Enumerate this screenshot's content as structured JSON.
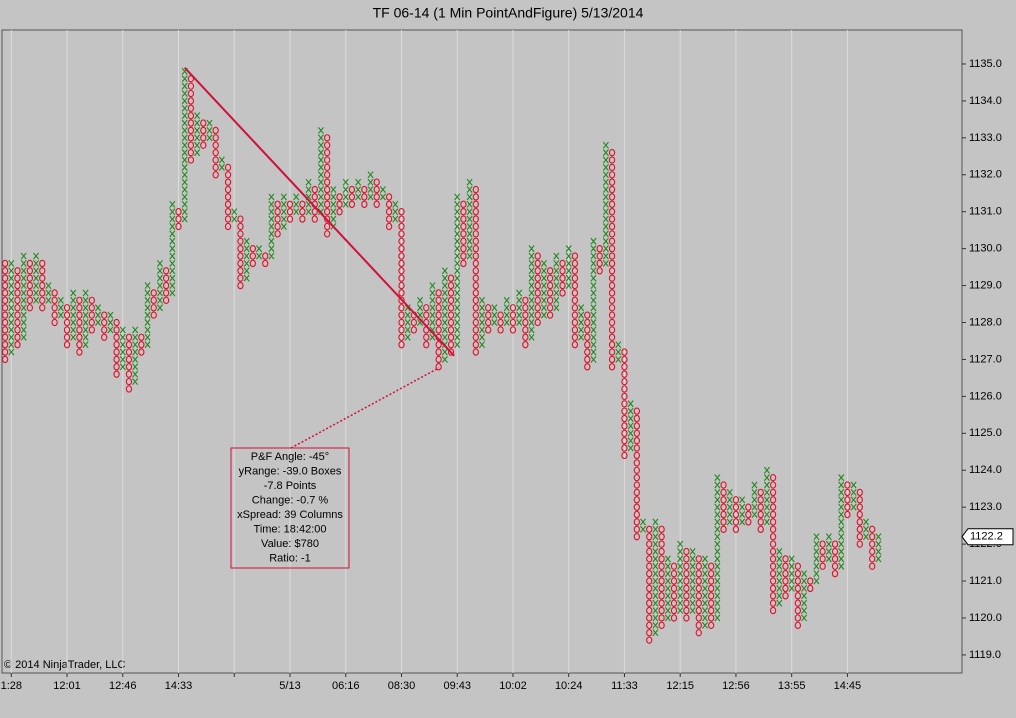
{
  "chart_data": {
    "type": "pointandfigure",
    "title": "TF 06-14 (1 Min PointAndFigure)  5/13/2014",
    "copyright": "© 2014 NinjaTrader, LLC",
    "box_size": 0.2,
    "first_column": "O",
    "x_color": "#1f8a1f",
    "o_color": "#e0102a",
    "columns": [
      [
        1127.0,
        1129.6
      ],
      [
        1127.2,
        1129.6
      ],
      [
        1127.4,
        1129.4
      ],
      [
        1127.6,
        1129.8
      ],
      [
        1128.4,
        1129.6
      ],
      [
        1128.6,
        1129.8
      ],
      [
        1128.4,
        1129.6
      ],
      [
        1128.6,
        1129.0
      ],
      [
        1128.0,
        1128.8
      ],
      [
        1128.2,
        1128.6
      ],
      [
        1127.4,
        1128.4
      ],
      [
        1127.6,
        1128.8
      ],
      [
        1127.2,
        1128.6
      ],
      [
        1127.4,
        1128.8
      ],
      [
        1127.8,
        1128.6
      ],
      [
        1128.0,
        1128.4
      ],
      [
        1127.6,
        1128.2
      ],
      [
        1127.8,
        1128.2
      ],
      [
        1126.6,
        1128.0
      ],
      [
        1126.8,
        1127.8
      ],
      [
        1126.2,
        1127.6
      ],
      [
        1126.4,
        1127.8
      ],
      [
        1127.2,
        1127.6
      ],
      [
        1127.4,
        1129.0
      ],
      [
        1128.2,
        1128.8
      ],
      [
        1128.4,
        1129.6
      ],
      [
        1128.6,
        1129.4
      ],
      [
        1128.8,
        1131.2
      ],
      [
        1130.6,
        1131.0
      ],
      [
        1130.8,
        1134.8
      ],
      [
        1132.4,
        1134.6
      ],
      [
        1132.6,
        1133.6
      ],
      [
        1132.8,
        1133.4
      ],
      [
        1133.0,
        1133.4
      ],
      [
        1132.0,
        1133.2
      ],
      [
        1132.2,
        1132.4
      ],
      [
        1130.6,
        1132.2
      ],
      [
        1130.8,
        1131.0
      ],
      [
        1129.0,
        1130.8
      ],
      [
        1129.2,
        1130.2
      ],
      [
        1129.6,
        1130.0
      ],
      [
        1129.8,
        1130.0
      ],
      [
        1129.6,
        1129.8
      ],
      [
        1129.8,
        1131.4
      ],
      [
        1130.4,
        1131.2
      ],
      [
        1130.6,
        1131.4
      ],
      [
        1130.8,
        1131.2
      ],
      [
        1131.0,
        1131.4
      ],
      [
        1130.8,
        1131.2
      ],
      [
        1131.0,
        1131.8
      ],
      [
        1130.8,
        1131.6
      ],
      [
        1131.0,
        1133.2
      ],
      [
        1130.4,
        1133.0
      ],
      [
        1130.6,
        1131.6
      ],
      [
        1131.0,
        1131.4
      ],
      [
        1131.2,
        1131.8
      ],
      [
        1131.2,
        1131.6
      ],
      [
        1131.4,
        1131.8
      ],
      [
        1131.2,
        1131.6
      ],
      [
        1131.4,
        1132.0
      ],
      [
        1131.2,
        1131.8
      ],
      [
        1131.4,
        1131.6
      ],
      [
        1130.6,
        1131.4
      ],
      [
        1130.8,
        1131.2
      ],
      [
        1127.4,
        1131.0
      ],
      [
        1127.6,
        1128.4
      ],
      [
        1127.8,
        1128.2
      ],
      [
        1128.0,
        1128.6
      ],
      [
        1127.4,
        1128.4
      ],
      [
        1127.6,
        1129.0
      ],
      [
        1126.8,
        1128.8
      ],
      [
        1127.0,
        1129.4
      ],
      [
        1127.2,
        1129.2
      ],
      [
        1127.4,
        1131.4
      ],
      [
        1129.6,
        1131.2
      ],
      [
        1129.8,
        1131.8
      ],
      [
        1127.2,
        1131.6
      ],
      [
        1127.4,
        1128.6
      ],
      [
        1127.8,
        1128.4
      ],
      [
        1128.0,
        1128.4
      ],
      [
        1127.8,
        1128.2
      ],
      [
        1128.0,
        1128.6
      ],
      [
        1127.8,
        1128.4
      ],
      [
        1128.0,
        1128.8
      ],
      [
        1127.4,
        1128.6
      ],
      [
        1127.6,
        1130.0
      ],
      [
        1128.0,
        1129.8
      ],
      [
        1128.2,
        1129.6
      ],
      [
        1128.2,
        1129.4
      ],
      [
        1128.4,
        1129.8
      ],
      [
        1128.8,
        1129.6
      ],
      [
        1129.0,
        1130.0
      ],
      [
        1127.4,
        1129.8
      ],
      [
        1127.6,
        1128.4
      ],
      [
        1126.8,
        1128.2
      ],
      [
        1127.0,
        1130.2
      ],
      [
        1129.4,
        1130.0
      ],
      [
        1129.6,
        1132.8
      ],
      [
        1126.8,
        1132.6
      ],
      [
        1127.0,
        1127.4
      ],
      [
        1124.4,
        1127.2
      ],
      [
        1124.6,
        1125.8
      ],
      [
        1122.2,
        1125.6
      ],
      [
        1122.4,
        1122.6
      ],
      [
        1119.4,
        1122.4
      ],
      [
        1119.6,
        1122.6
      ],
      [
        1119.8,
        1122.4
      ],
      [
        1120.0,
        1121.6
      ],
      [
        1120.0,
        1121.4
      ],
      [
        1120.2,
        1122.0
      ],
      [
        1120.0,
        1121.8
      ],
      [
        1120.2,
        1121.8
      ],
      [
        1119.6,
        1121.6
      ],
      [
        1119.8,
        1121.6
      ],
      [
        1119.8,
        1121.4
      ],
      [
        1120.0,
        1123.8
      ],
      [
        1122.4,
        1123.6
      ],
      [
        1122.6,
        1123.4
      ],
      [
        1122.4,
        1123.2
      ],
      [
        1122.6,
        1123.2
      ],
      [
        1122.6,
        1123.0
      ],
      [
        1122.8,
        1123.6
      ],
      [
        1122.4,
        1123.4
      ],
      [
        1122.6,
        1124.0
      ],
      [
        1120.2,
        1123.8
      ],
      [
        1120.4,
        1121.8
      ],
      [
        1120.6,
        1121.6
      ],
      [
        1120.8,
        1121.6
      ],
      [
        1119.8,
        1121.4
      ],
      [
        1120.0,
        1121.2
      ],
      [
        1120.8,
        1121.0
      ],
      [
        1121.0,
        1122.2
      ],
      [
        1121.4,
        1122.0
      ],
      [
        1121.6,
        1122.2
      ],
      [
        1121.2,
        1122.0
      ],
      [
        1121.4,
        1123.8
      ],
      [
        1122.8,
        1123.6
      ],
      [
        1123.0,
        1123.6
      ],
      [
        1122.0,
        1123.4
      ],
      [
        1122.2,
        1122.6
      ],
      [
        1121.4,
        1122.4
      ],
      [
        1121.6,
        1122.2
      ]
    ],
    "xlim": [
      -0.5,
      154.5
    ],
    "xticks": [
      {
        "value": 1,
        "label": "1:28"
      },
      {
        "value": 10,
        "label": "12:01"
      },
      {
        "value": 19,
        "label": "12:46"
      },
      {
        "value": 28,
        "label": "14:33"
      },
      {
        "value": 37,
        "label": null
      },
      {
        "value": 46,
        "label": "5/13"
      },
      {
        "value": 55,
        "label": "06:16"
      },
      {
        "value": 64,
        "label": "08:30"
      },
      {
        "value": 73,
        "label": "09:43"
      },
      {
        "value": 82,
        "label": "10:02"
      },
      {
        "value": 91,
        "label": "10:24"
      },
      {
        "value": 100,
        "label": "11:33"
      },
      {
        "value": 109,
        "label": "12:15"
      },
      {
        "value": 118,
        "label": "12:56"
      },
      {
        "value": 127,
        "label": "13:55"
      },
      {
        "value": 136,
        "label": "14:45"
      }
    ],
    "ylim": [
      1118.51,
      1135.92
    ],
    "yticks": [
      {
        "value": 1119,
        "label": "1119.0"
      },
      {
        "value": 1120,
        "label": "1120.0"
      },
      {
        "value": 1121,
        "label": "1121.0"
      },
      {
        "value": 1122,
        "label": "1122.0"
      },
      {
        "value": 1123,
        "label": "1123.0"
      },
      {
        "value": 1124,
        "label": "1124.0"
      },
      {
        "value": 1125,
        "label": "1125.0"
      },
      {
        "value": 1126,
        "label": "1126.0"
      },
      {
        "value": 1127,
        "label": "1127.0"
      },
      {
        "value": 1128,
        "label": "1128.0"
      },
      {
        "value": 1129,
        "label": "1129.0"
      },
      {
        "value": 1130,
        "label": "1130.0"
      },
      {
        "value": 1131,
        "label": "1131.0"
      },
      {
        "value": 1132,
        "label": "1132.0"
      },
      {
        "value": 1133,
        "label": "1133.0"
      },
      {
        "value": 1134,
        "label": "1134.0"
      },
      {
        "value": 1135,
        "label": "1135.0"
      }
    ],
    "vertical_grid": true,
    "last_price": 1122.2,
    "trend_line": {
      "color": "#d0103a",
      "x": [
        29,
        72.5
      ],
      "y": [
        1134.9,
        1127.1
      ]
    },
    "annotation": [
      "P&F Angle: -45°",
      "yRange: -39.0 Boxes",
      "-7.8 Points",
      "Change: -0.7 %",
      "xSpread: 39 Columns",
      "Time: 18:42:00",
      "Value: $780",
      "Ratio: -1"
    ]
  }
}
